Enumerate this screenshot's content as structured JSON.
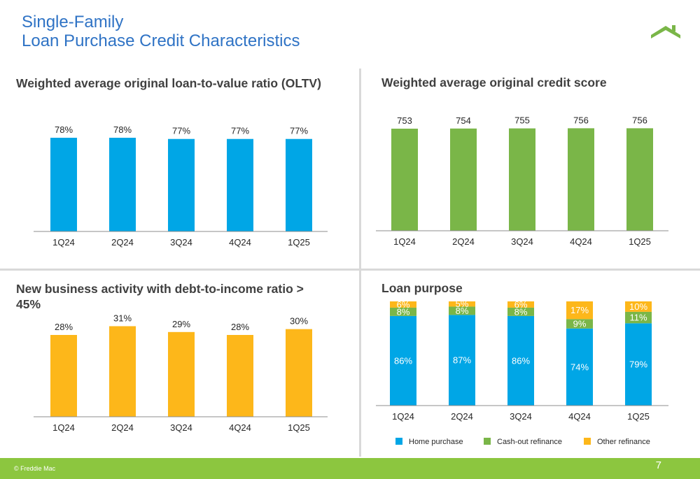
{
  "page": {
    "title_line1": "Single-Family",
    "title_line2": "Loan Purchase Credit Characteristics",
    "footer_copyright": "© Freddie Mac",
    "page_number": "7"
  },
  "colors": {
    "title": "#2f73c5",
    "blue": "#00a6e6",
    "green": "#7ab648",
    "yellow": "#fdb71a",
    "footer": "#8cc63f"
  },
  "chart_data": [
    {
      "id": "oltv",
      "type": "bar",
      "title": "Weighted average original loan-to-value ratio (OLTV)",
      "categories": [
        "1Q24",
        "2Q24",
        "3Q24",
        "4Q24",
        "1Q25"
      ],
      "values": [
        78,
        78,
        77,
        77,
        77
      ],
      "labels": [
        "78%",
        "78%",
        "77%",
        "77%",
        "77%"
      ],
      "ylim": [
        0,
        100
      ],
      "color": "#00a6e6",
      "grid": false
    },
    {
      "id": "credit",
      "type": "bar",
      "title": "Weighted average original credit score",
      "categories": [
        "1Q24",
        "2Q24",
        "3Q24",
        "4Q24",
        "1Q25"
      ],
      "values": [
        753,
        754,
        755,
        756,
        756
      ],
      "labels": [
        "753",
        "754",
        "755",
        "756",
        "756"
      ],
      "ylim": [
        0,
        890
      ],
      "color": "#7ab648",
      "grid": false
    },
    {
      "id": "dti",
      "type": "bar",
      "title": "New business activity with debt-to-income ratio > 45%",
      "categories": [
        "1Q24",
        "2Q24",
        "3Q24",
        "4Q24",
        "1Q25"
      ],
      "values": [
        28,
        31,
        29,
        28,
        30
      ],
      "labels": [
        "28%",
        "31%",
        "29%",
        "28%",
        "30%"
      ],
      "ylim": [
        0,
        40
      ],
      "color": "#fdb71a",
      "grid": false
    },
    {
      "id": "purpose",
      "type": "bar",
      "stacked": true,
      "title": "Loan purpose",
      "categories": [
        "1Q24",
        "2Q24",
        "3Q24",
        "4Q24",
        "1Q25"
      ],
      "series": [
        {
          "name": "Home purchase",
          "values": [
            86,
            87,
            86,
            74,
            79
          ],
          "labels": [
            "86%",
            "87%",
            "86%",
            "74%",
            "79%"
          ],
          "color": "#00a6e6"
        },
        {
          "name": "Cash-out refinance",
          "values": [
            8,
            8,
            8,
            9,
            11
          ],
          "labels": [
            "8%",
            "8%",
            "8%",
            "9%",
            "11%"
          ],
          "color": "#7ab648"
        },
        {
          "name": "Other refinance",
          "values": [
            6,
            5,
            6,
            17,
            10
          ],
          "labels": [
            "6%",
            "5%",
            "6%",
            "17%",
            "10%"
          ],
          "color": "#fdb71a"
        }
      ],
      "ylim": [
        0,
        100
      ],
      "legend": "bottom",
      "grid": false
    }
  ]
}
